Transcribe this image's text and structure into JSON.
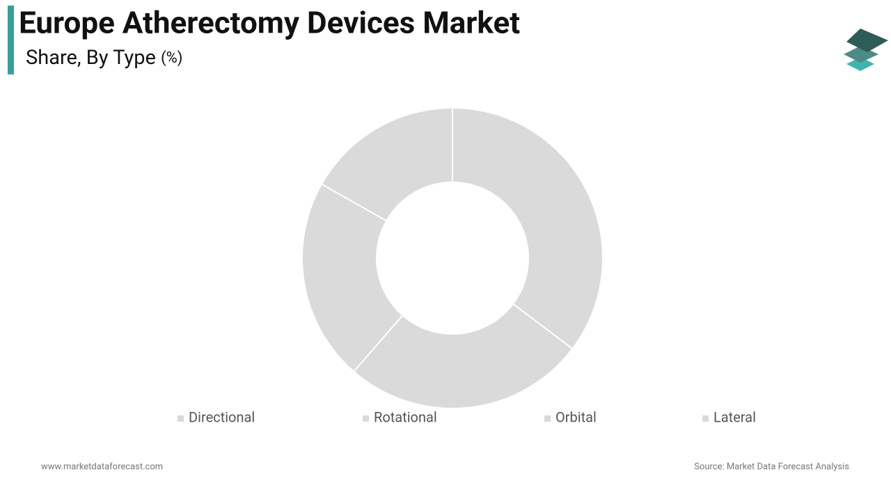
{
  "chart_data": {
    "type": "donut",
    "title": "Europe Atherectomy Devices Market",
    "subtitle": "Share, By Type",
    "unit": "(%)",
    "categories": [
      "Directional",
      "Rotational",
      "Orbital",
      "Lateral"
    ],
    "values": [
      35.3,
      26.1,
      21.8,
      16.8
    ],
    "color": "#dadada",
    "legend": "bottom"
  },
  "footer": {
    "website": "www.marketdataforecast.com",
    "source": "Source: Market Data Forecast Analysis"
  }
}
